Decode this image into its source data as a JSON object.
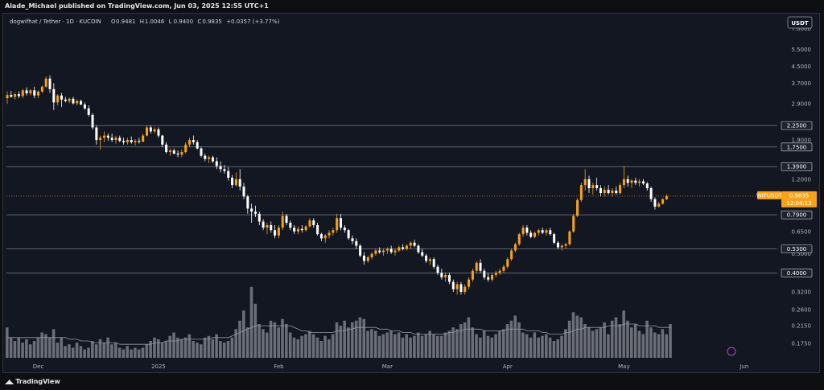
{
  "header": {
    "published_by": "Alade_Michael published on TradingView.com, Jun 03, 2025 12:55 UTC+1"
  },
  "footer": {
    "logo_text": "TradingView",
    "logo_icon": "tradingview-logo-icon"
  },
  "colors": {
    "up": "#f7a21b",
    "down": "#ffffff",
    "background": "#131722",
    "price_line": "#f7a21b",
    "level_line": "#7b7e89",
    "volume": "#8a8c96",
    "volume_ma": "#9598a1"
  },
  "chart_data": {
    "type": "candlestick",
    "legend": {
      "symbol": "dogwifhat / Tether · 1D · KUCOIN",
      "open_label": "O",
      "open": "0.9481",
      "high_label": "H",
      "high": "1.0046",
      "low_label": "L",
      "low": "0.9400",
      "close_label": "C",
      "close": "0.9835",
      "change": "+0.0357 (+3.77%)"
    },
    "currency": "USDT",
    "y_scale": "log",
    "ylim": [
      0.145,
      7.6
    ],
    "y_ticks": [
      "7.0000",
      "5.5000",
      "4.5000",
      "3.7000",
      "2.9000",
      "1.9000",
      "1.2000",
      "0.6500",
      "0.5000",
      "0.3200",
      "0.2600",
      "0.2150",
      "0.1750"
    ],
    "y_tick_values": [
      7.0,
      5.5,
      4.5,
      3.7,
      2.9,
      1.9,
      1.2,
      0.65,
      0.5,
      0.32,
      0.26,
      0.215,
      0.175
    ],
    "levels": [
      {
        "label": "2.2500",
        "value": 2.25
      },
      {
        "label": "1.7500",
        "value": 1.75
      },
      {
        "label": "1.3900",
        "value": 1.39
      },
      {
        "label": "0.7900",
        "value": 0.79
      },
      {
        "label": "0.5300",
        "value": 0.53
      },
      {
        "label": "0.4000",
        "value": 0.4
      }
    ],
    "current_price": {
      "symbol": "WIFUSDT",
      "value_label": "0.9835",
      "value": 0.9835,
      "countdown": "12:04:13"
    },
    "x_ticks": [
      {
        "label": "Dec",
        "date": "2024-12-01"
      },
      {
        "label": "2025",
        "date": "2025-01-01"
      },
      {
        "label": "Feb",
        "date": "2025-02-01"
      },
      {
        "label": "Mar",
        "date": "2025-03-01"
      },
      {
        "label": "Apr",
        "date": "2025-04-01"
      },
      {
        "label": "May",
        "date": "2025-05-01"
      },
      {
        "label": "Jun",
        "date": "2025-06-01"
      }
    ],
    "first_date": "2024-11-23",
    "ohlc": [
      [
        3.1,
        3.35,
        2.9,
        3.22
      ],
      [
        3.22,
        3.38,
        3.12,
        3.15
      ],
      [
        3.15,
        3.3,
        3.05,
        3.25
      ],
      [
        3.25,
        3.36,
        3.1,
        3.18
      ],
      [
        3.18,
        3.45,
        3.1,
        3.4
      ],
      [
        3.4,
        3.52,
        3.2,
        3.28
      ],
      [
        3.28,
        3.45,
        3.2,
        3.4
      ],
      [
        3.4,
        3.55,
        3.1,
        3.2
      ],
      [
        3.2,
        3.4,
        3.1,
        3.35
      ],
      [
        3.35,
        3.6,
        3.3,
        3.55
      ],
      [
        3.55,
        4.0,
        3.5,
        3.9
      ],
      [
        3.9,
        4.05,
        3.3,
        3.45
      ],
      [
        3.45,
        3.7,
        2.7,
        2.95
      ],
      [
        2.95,
        3.25,
        2.85,
        3.2
      ],
      [
        3.2,
        3.3,
        2.8,
        3.05
      ],
      [
        3.05,
        3.15,
        2.95,
        3.0
      ],
      [
        3.0,
        3.12,
        2.92,
        3.08
      ],
      [
        3.08,
        3.15,
        2.88,
        2.92
      ],
      [
        2.92,
        3.05,
        2.85,
        3.0
      ],
      [
        3.0,
        3.05,
        2.85,
        2.88
      ],
      [
        2.88,
        2.95,
        2.7,
        2.75
      ],
      [
        2.75,
        2.85,
        2.5,
        2.55
      ],
      [
        2.55,
        2.6,
        2.15,
        2.2
      ],
      [
        2.2,
        2.25,
        1.8,
        1.9
      ],
      [
        1.9,
        2.0,
        1.7,
        1.95
      ],
      [
        1.95,
        2.1,
        1.85,
        2.0
      ],
      [
        2.0,
        2.05,
        1.88,
        1.95
      ],
      [
        1.95,
        2.05,
        1.85,
        1.9
      ],
      [
        1.9,
        2.0,
        1.82,
        1.95
      ],
      [
        1.95,
        2.0,
        1.85,
        1.88
      ],
      [
        1.88,
        1.95,
        1.8,
        1.85
      ],
      [
        1.85,
        1.95,
        1.8,
        1.9
      ],
      [
        1.9,
        1.98,
        1.82,
        1.85
      ],
      [
        1.85,
        1.92,
        1.78,
        1.88
      ],
      [
        1.88,
        1.95,
        1.82,
        1.86
      ],
      [
        1.86,
        2.05,
        1.85,
        2.0
      ],
      [
        2.0,
        2.25,
        1.98,
        2.2
      ],
      [
        2.2,
        2.25,
        2.05,
        2.1
      ],
      [
        2.1,
        2.2,
        2.05,
        2.15
      ],
      [
        2.15,
        2.2,
        1.95,
        2.0
      ],
      [
        2.0,
        2.02,
        1.75,
        1.8
      ],
      [
        1.8,
        1.85,
        1.62,
        1.65
      ],
      [
        1.65,
        1.72,
        1.58,
        1.68
      ],
      [
        1.68,
        1.72,
        1.6,
        1.62
      ],
      [
        1.62,
        1.68,
        1.55,
        1.6
      ],
      [
        1.6,
        1.7,
        1.55,
        1.65
      ],
      [
        1.65,
        1.85,
        1.62,
        1.8
      ],
      [
        1.8,
        1.95,
        1.75,
        1.9
      ],
      [
        1.9,
        2.0,
        1.8,
        1.85
      ],
      [
        1.85,
        1.9,
        1.7,
        1.72
      ],
      [
        1.72,
        1.75,
        1.55,
        1.58
      ],
      [
        1.58,
        1.62,
        1.48,
        1.52
      ],
      [
        1.52,
        1.58,
        1.45,
        1.55
      ],
      [
        1.55,
        1.58,
        1.45,
        1.48
      ],
      [
        1.48,
        1.55,
        1.35,
        1.4
      ],
      [
        1.4,
        1.48,
        1.3,
        1.35
      ],
      [
        1.35,
        1.42,
        1.28,
        1.32
      ],
      [
        1.32,
        1.38,
        1.18,
        1.22
      ],
      [
        1.22,
        1.26,
        1.08,
        1.12
      ],
      [
        1.12,
        1.3,
        1.1,
        1.2
      ],
      [
        1.2,
        1.35,
        1.05,
        1.1
      ],
      [
        1.1,
        1.15,
        0.95,
        0.98
      ],
      [
        0.98,
        1.0,
        0.8,
        0.85
      ],
      [
        0.85,
        0.9,
        0.72,
        0.82
      ],
      [
        0.82,
        0.88,
        0.77,
        0.8
      ],
      [
        0.8,
        0.82,
        0.7,
        0.73
      ],
      [
        0.73,
        0.75,
        0.66,
        0.68
      ],
      [
        0.68,
        0.72,
        0.63,
        0.7
      ],
      [
        0.7,
        0.73,
        0.64,
        0.66
      ],
      [
        0.66,
        0.7,
        0.6,
        0.62
      ],
      [
        0.62,
        0.7,
        0.6,
        0.68
      ],
      [
        0.68,
        0.82,
        0.66,
        0.78
      ],
      [
        0.78,
        0.8,
        0.7,
        0.72
      ],
      [
        0.72,
        0.74,
        0.66,
        0.68
      ],
      [
        0.68,
        0.7,
        0.63,
        0.65
      ],
      [
        0.65,
        0.69,
        0.63,
        0.67
      ],
      [
        0.67,
        0.7,
        0.64,
        0.66
      ],
      [
        0.66,
        0.7,
        0.65,
        0.69
      ],
      [
        0.69,
        0.76,
        0.68,
        0.74
      ],
      [
        0.74,
        0.76,
        0.68,
        0.7
      ],
      [
        0.7,
        0.72,
        0.62,
        0.63
      ],
      [
        0.63,
        0.64,
        0.58,
        0.6
      ],
      [
        0.6,
        0.63,
        0.57,
        0.62
      ],
      [
        0.62,
        0.66,
        0.6,
        0.64
      ],
      [
        0.64,
        0.68,
        0.62,
        0.66
      ],
      [
        0.66,
        0.8,
        0.64,
        0.76
      ],
      [
        0.76,
        0.8,
        0.66,
        0.68
      ],
      [
        0.68,
        0.7,
        0.64,
        0.66
      ],
      [
        0.66,
        0.67,
        0.59,
        0.6
      ],
      [
        0.6,
        0.62,
        0.56,
        0.58
      ],
      [
        0.58,
        0.6,
        0.53,
        0.55
      ],
      [
        0.55,
        0.56,
        0.48,
        0.49
      ],
      [
        0.49,
        0.51,
        0.44,
        0.46
      ],
      [
        0.46,
        0.49,
        0.45,
        0.48
      ],
      [
        0.48,
        0.51,
        0.47,
        0.5
      ],
      [
        0.5,
        0.53,
        0.49,
        0.52
      ],
      [
        0.52,
        0.54,
        0.5,
        0.51
      ],
      [
        0.51,
        0.53,
        0.49,
        0.52
      ],
      [
        0.52,
        0.54,
        0.5,
        0.53
      ],
      [
        0.53,
        0.55,
        0.5,
        0.51
      ],
      [
        0.51,
        0.53,
        0.49,
        0.52
      ],
      [
        0.52,
        0.55,
        0.51,
        0.54
      ],
      [
        0.54,
        0.56,
        0.52,
        0.53
      ],
      [
        0.53,
        0.56,
        0.52,
        0.55
      ],
      [
        0.55,
        0.58,
        0.53,
        0.57
      ],
      [
        0.57,
        0.59,
        0.54,
        0.55
      ],
      [
        0.55,
        0.56,
        0.5,
        0.51
      ],
      [
        0.51,
        0.53,
        0.48,
        0.49
      ],
      [
        0.49,
        0.5,
        0.45,
        0.46
      ],
      [
        0.46,
        0.48,
        0.44,
        0.47
      ],
      [
        0.47,
        0.48,
        0.42,
        0.43
      ],
      [
        0.43,
        0.44,
        0.39,
        0.4
      ],
      [
        0.4,
        0.42,
        0.37,
        0.38
      ],
      [
        0.38,
        0.4,
        0.36,
        0.39
      ],
      [
        0.39,
        0.4,
        0.35,
        0.36
      ],
      [
        0.36,
        0.37,
        0.32,
        0.33
      ],
      [
        0.33,
        0.36,
        0.31,
        0.35
      ],
      [
        0.35,
        0.36,
        0.31,
        0.32
      ],
      [
        0.32,
        0.35,
        0.31,
        0.34
      ],
      [
        0.34,
        0.38,
        0.33,
        0.37
      ],
      [
        0.37,
        0.42,
        0.36,
        0.41
      ],
      [
        0.41,
        0.46,
        0.4,
        0.45
      ],
      [
        0.45,
        0.47,
        0.4,
        0.41
      ],
      [
        0.41,
        0.42,
        0.37,
        0.38
      ],
      [
        0.38,
        0.4,
        0.36,
        0.37
      ],
      [
        0.37,
        0.4,
        0.36,
        0.39
      ],
      [
        0.39,
        0.41,
        0.38,
        0.4
      ],
      [
        0.4,
        0.42,
        0.39,
        0.41
      ],
      [
        0.41,
        0.44,
        0.4,
        0.43
      ],
      [
        0.43,
        0.48,
        0.42,
        0.47
      ],
      [
        0.47,
        0.53,
        0.46,
        0.52
      ],
      [
        0.52,
        0.57,
        0.51,
        0.56
      ],
      [
        0.56,
        0.64,
        0.55,
        0.63
      ],
      [
        0.63,
        0.7,
        0.61,
        0.68
      ],
      [
        0.68,
        0.7,
        0.62,
        0.64
      ],
      [
        0.64,
        0.66,
        0.6,
        0.61
      ],
      [
        0.61,
        0.65,
        0.6,
        0.64
      ],
      [
        0.64,
        0.67,
        0.62,
        0.66
      ],
      [
        0.66,
        0.68,
        0.63,
        0.64
      ],
      [
        0.64,
        0.67,
        0.62,
        0.66
      ],
      [
        0.66,
        0.68,
        0.62,
        0.63
      ],
      [
        0.63,
        0.64,
        0.56,
        0.57
      ],
      [
        0.57,
        0.58,
        0.53,
        0.54
      ],
      [
        0.54,
        0.56,
        0.52,
        0.55
      ],
      [
        0.55,
        0.57,
        0.53,
        0.56
      ],
      [
        0.56,
        0.66,
        0.55,
        0.65
      ],
      [
        0.65,
        0.8,
        0.64,
        0.78
      ],
      [
        0.78,
        0.96,
        0.77,
        0.94
      ],
      [
        0.94,
        1.15,
        0.92,
        1.12
      ],
      [
        1.12,
        1.35,
        1.05,
        1.2
      ],
      [
        1.2,
        1.25,
        1.02,
        1.08
      ],
      [
        1.08,
        1.15,
        1.0,
        1.12
      ],
      [
        1.12,
        1.22,
        1.05,
        1.08
      ],
      [
        1.08,
        1.12,
        0.98,
        1.02
      ],
      [
        1.02,
        1.1,
        0.98,
        1.06
      ],
      [
        1.06,
        1.12,
        1.0,
        1.02
      ],
      [
        1.02,
        1.08,
        0.98,
        1.05
      ],
      [
        1.05,
        1.1,
        1.0,
        1.02
      ],
      [
        1.02,
        1.15,
        1.0,
        1.12
      ],
      [
        1.12,
        1.4,
        1.08,
        1.2
      ],
      [
        1.2,
        1.25,
        1.1,
        1.15
      ],
      [
        1.15,
        1.2,
        1.08,
        1.18
      ],
      [
        1.18,
        1.22,
        1.12,
        1.15
      ],
      [
        1.15,
        1.2,
        1.1,
        1.17
      ],
      [
        1.17,
        1.2,
        1.12,
        1.14
      ],
      [
        1.14,
        1.16,
        1.05,
        1.08
      ],
      [
        1.08,
        1.1,
        0.92,
        0.95
      ],
      [
        0.95,
        0.97,
        0.84,
        0.87
      ],
      [
        0.87,
        0.92,
        0.86,
        0.9
      ],
      [
        0.9,
        0.96,
        0.89,
        0.95
      ],
      [
        0.9481,
        1.0046,
        0.94,
        0.9835
      ]
    ],
    "volume": [
      0.18,
      0.12,
      0.1,
      0.12,
      0.09,
      0.11,
      0.08,
      0.1,
      0.12,
      0.15,
      0.14,
      0.12,
      0.17,
      0.09,
      0.12,
      0.07,
      0.08,
      0.06,
      0.09,
      0.07,
      0.05,
      0.06,
      0.1,
      0.08,
      0.11,
      0.09,
      0.12,
      0.08,
      0.09,
      0.06,
      0.05,
      0.07,
      0.05,
      0.06,
      0.05,
      0.06,
      0.08,
      0.1,
      0.12,
      0.11,
      0.09,
      0.1,
      0.13,
      0.15,
      0.12,
      0.11,
      0.12,
      0.14,
      0.1,
      0.09,
      0.08,
      0.12,
      0.13,
      0.11,
      0.14,
      0.1,
      0.09,
      0.1,
      0.12,
      0.17,
      0.22,
      0.28,
      0.18,
      0.42,
      0.32,
      0.2,
      0.17,
      0.15,
      0.22,
      0.21,
      0.18,
      0.23,
      0.2,
      0.15,
      0.12,
      0.11,
      0.13,
      0.14,
      0.16,
      0.14,
      0.12,
      0.1,
      0.13,
      0.11,
      0.14,
      0.21,
      0.19,
      0.22,
      0.18,
      0.21,
      0.22,
      0.24,
      0.23,
      0.16,
      0.17,
      0.16,
      0.13,
      0.14,
      0.15,
      0.16,
      0.14,
      0.15,
      0.12,
      0.14,
      0.12,
      0.13,
      0.15,
      0.13,
      0.14,
      0.16,
      0.14,
      0.13,
      0.13,
      0.15,
      0.16,
      0.18,
      0.17,
      0.2,
      0.21,
      0.24,
      0.18,
      0.14,
      0.12,
      0.16,
      0.13,
      0.12,
      0.14,
      0.16,
      0.17,
      0.2,
      0.22,
      0.25,
      0.21,
      0.15,
      0.14,
      0.12,
      0.15,
      0.12,
      0.13,
      0.14,
      0.12,
      0.1,
      0.11,
      0.13,
      0.17,
      0.22,
      0.27,
      0.25,
      0.24,
      0.2,
      0.18,
      0.16,
      0.17,
      0.18,
      0.21,
      0.14,
      0.22,
      0.24,
      0.2,
      0.28,
      0.22,
      0.18,
      0.2,
      0.16,
      0.14,
      0.22,
      0.18,
      0.15,
      0.14,
      0.17,
      0.14,
      0.2
    ],
    "volume_ma": [
      0.12,
      0.12,
      0.12,
      0.12,
      0.12,
      0.12,
      0.12,
      0.12,
      0.12,
      0.12,
      0.12,
      0.12,
      0.12,
      0.12,
      0.12,
      0.12,
      0.11,
      0.11,
      0.11,
      0.1,
      0.1,
      0.1,
      0.09,
      0.09,
      0.09,
      0.09,
      0.09,
      0.09,
      0.09,
      0.08,
      0.08,
      0.08,
      0.08,
      0.08,
      0.08,
      0.08,
      0.08,
      0.08,
      0.09,
      0.09,
      0.09,
      0.1,
      0.1,
      0.1,
      0.1,
      0.11,
      0.11,
      0.11,
      0.11,
      0.11,
      0.11,
      0.11,
      0.11,
      0.12,
      0.12,
      0.12,
      0.12,
      0.12,
      0.13,
      0.14,
      0.15,
      0.16,
      0.17,
      0.18,
      0.19,
      0.19,
      0.19,
      0.19,
      0.19,
      0.19,
      0.19,
      0.19,
      0.19,
      0.19,
      0.18,
      0.17,
      0.16,
      0.16,
      0.15,
      0.15,
      0.15,
      0.15,
      0.15,
      0.15,
      0.15,
      0.16,
      0.16,
      0.16,
      0.17,
      0.17,
      0.18,
      0.18,
      0.18,
      0.18,
      0.18,
      0.18,
      0.17,
      0.17,
      0.17,
      0.16,
      0.16,
      0.16,
      0.15,
      0.15,
      0.15,
      0.14,
      0.14,
      0.14,
      0.14,
      0.14,
      0.14,
      0.14,
      0.14,
      0.14,
      0.15,
      0.15,
      0.16,
      0.16,
      0.17,
      0.17,
      0.17,
      0.17,
      0.17,
      0.16,
      0.16,
      0.16,
      0.16,
      0.16,
      0.16,
      0.17,
      0.17,
      0.17,
      0.17,
      0.17,
      0.16,
      0.16,
      0.16,
      0.16,
      0.15,
      0.15,
      0.14,
      0.14,
      0.14,
      0.14,
      0.15,
      0.15,
      0.16,
      0.17,
      0.17,
      0.18,
      0.18,
      0.18,
      0.18,
      0.18,
      0.18,
      0.19,
      0.19,
      0.19,
      0.19,
      0.2,
      0.2,
      0.2,
      0.2,
      0.19,
      0.19,
      0.19,
      0.19,
      0.19,
      0.18,
      0.18,
      0.18,
      0.18
    ]
  }
}
